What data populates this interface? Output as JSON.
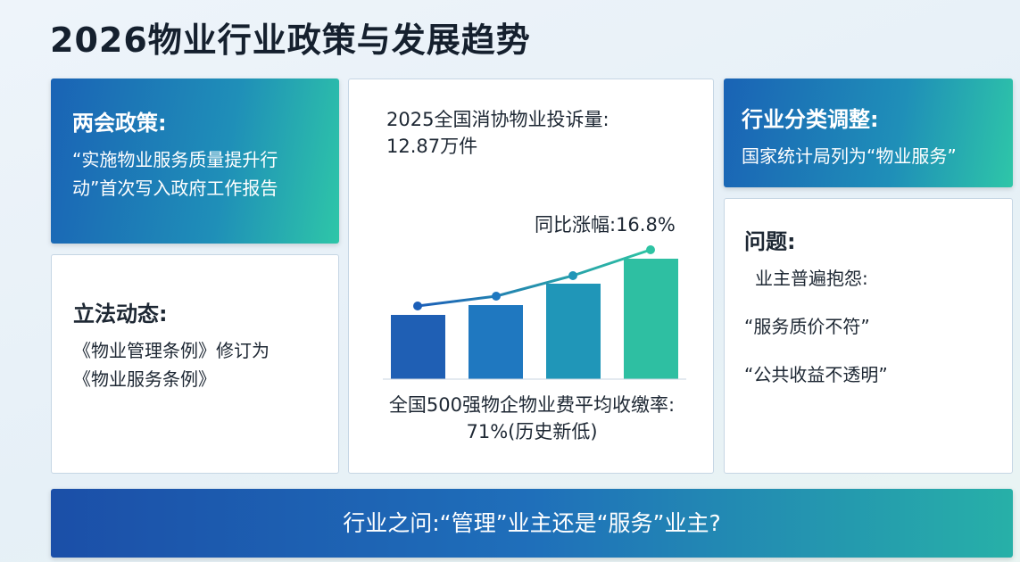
{
  "title": "2026物业行业政策与发展趋势",
  "policy": {
    "heading": "两会政策:",
    "lines": [
      "“实施物业服务质量提升行",
      "动”首次写入政府工作报告"
    ]
  },
  "legislation": {
    "heading": "立法动态:",
    "lines": [
      "《物业管理条例》修订为",
      "《物业服务条例》"
    ]
  },
  "complaints": {
    "heading_lines": [
      "2025全国消协物业投诉量:",
      "12.87万件"
    ],
    "growth": "同比涨幅:16.8%",
    "caption_lines": [
      "全国500强物企物业费平均收缴率:",
      "71%(历史新低)"
    ]
  },
  "classification": {
    "heading": "行业分类调整:",
    "text": "国家统计局列为“物业服务”"
  },
  "issues": {
    "heading": "问题:",
    "items": [
      "业主普遍抱怨:",
      "“服务质价不符”",
      "“公共收益不透明”"
    ]
  },
  "footer": "行业之问:“管理”业主还是“服务”业主?"
}
